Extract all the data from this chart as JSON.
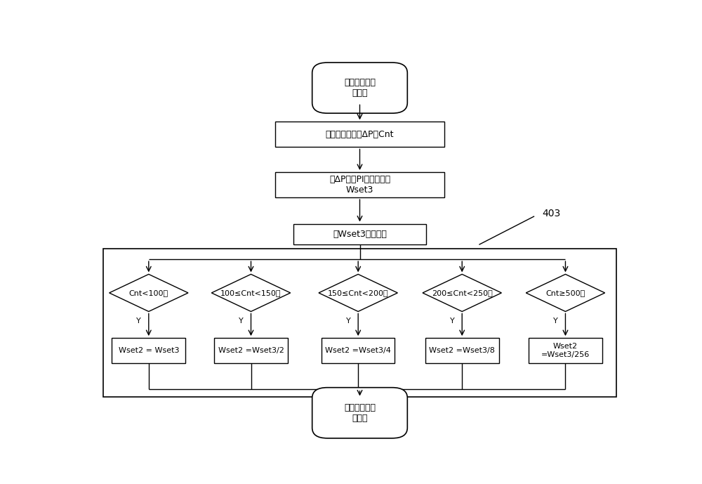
{
  "bg_color": "#ffffff",
  "line_color": "#000000",
  "text_color": "#000000",
  "fig_width": 10.0,
  "fig_height": 6.89,
  "dpi": 100,
  "start_text": "位置环运算控\n制开始",
  "box1_text": "累积脉冲变化量ΔP，Cnt",
  "box2_text": "对ΔP进行PI计算，得到\nWset3",
  "box3_text": "对Wset3进行限幅",
  "end_text": "位置环运算控\n制结束",
  "dia_labels": [
    "Cnt<100？",
    "100≤Cnt<150？",
    "150≤Cnt<200？",
    "200≤Cnt<250？",
    "Cnt≥500？"
  ],
  "res_labels": [
    "Wset2 = Wset3",
    "Wset2 =Wset3/2",
    "Wset2 =Wset3/4",
    "Wset2 =Wset3/8",
    "Wset2\n=Wset3/256"
  ],
  "annotation_text": "403",
  "font_size": 9,
  "font_size_small": 8
}
